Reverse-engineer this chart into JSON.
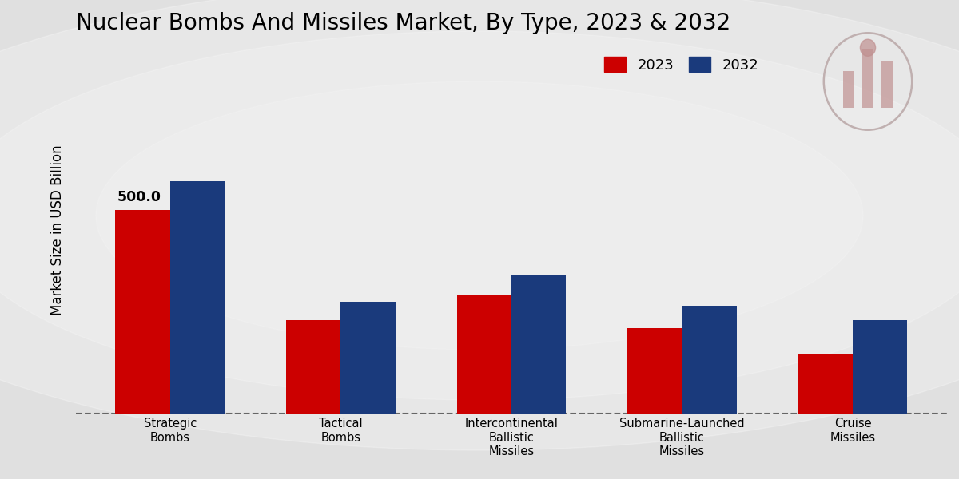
{
  "title": "Nuclear Bombs And Missiles Market, By Type, 2023 & 2032",
  "ylabel": "Market Size in USD Billion",
  "categories": [
    "Strategic\nBombs",
    "Tactical\nBombs",
    "Intercontinental\nBallistic\nMissiles",
    "Submarine-Launched\nBallistic\nMissiles",
    "Cruise\nMissiles"
  ],
  "values_2023": [
    500,
    230,
    290,
    210,
    145
  ],
  "values_2032": [
    570,
    275,
    340,
    265,
    230
  ],
  "color_2023": "#cc0000",
  "color_2032": "#1a3a7c",
  "annotation_label": "500.0",
  "bar_width": 0.32,
  "ylim": [
    0,
    900
  ],
  "legend_labels": [
    "2023",
    "2032"
  ],
  "title_fontsize": 20,
  "axis_label_fontsize": 12,
  "tick_fontsize": 10.5,
  "legend_fontsize": 13,
  "bg_color_center": "#d8d8d8",
  "bg_color_edge": "#b8b8b8"
}
